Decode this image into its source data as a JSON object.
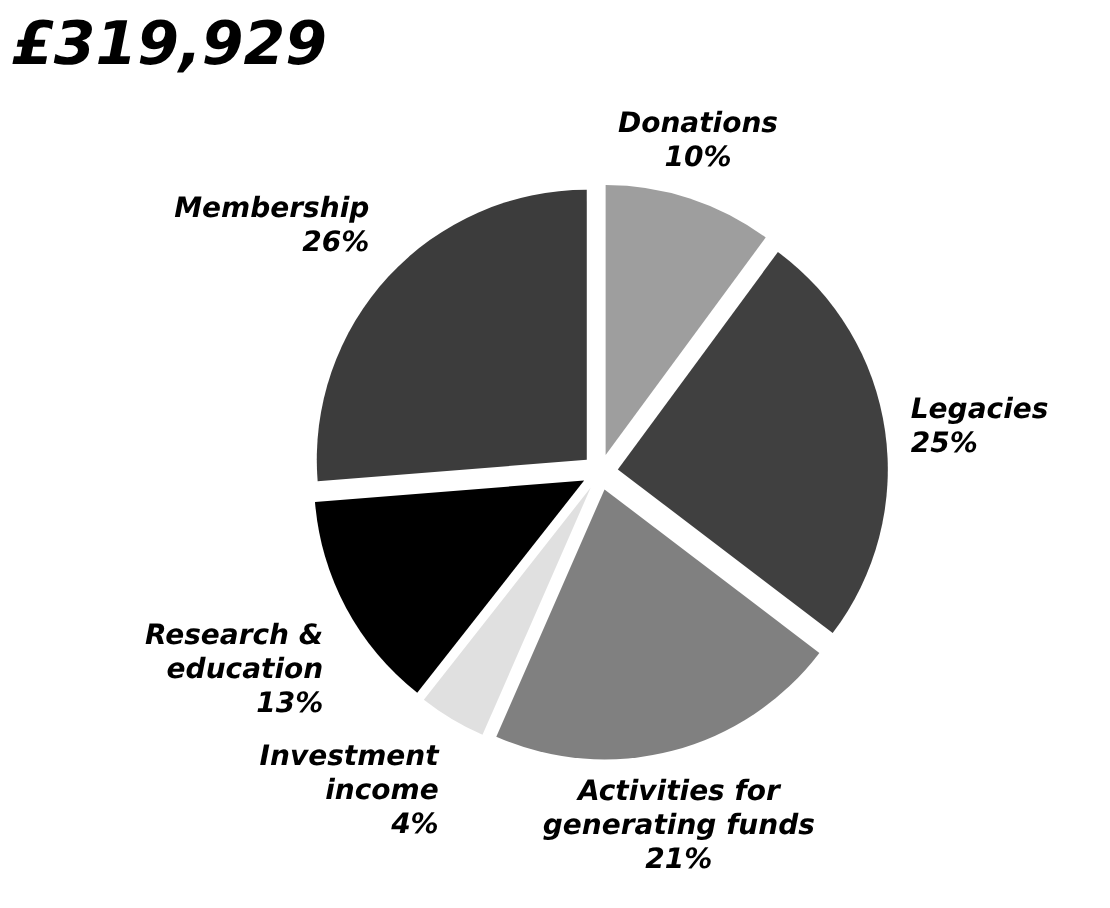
{
  "chart_data": {
    "type": "pie",
    "title": "£319,929",
    "categories": [
      "Donations",
      "Legacies",
      "Activities for generating funds",
      "Investment income",
      "Research & education",
      "Membership"
    ],
    "values": [
      10,
      25,
      21,
      4,
      13,
      26
    ],
    "value_labels": [
      "10%",
      "25%",
      "21%",
      "4%",
      "13%",
      "26%"
    ],
    "colors": [
      "#9e9e9e",
      "#404040",
      "#808080",
      "#e0e0e0",
      "#000000",
      "#3c3c3c"
    ]
  }
}
